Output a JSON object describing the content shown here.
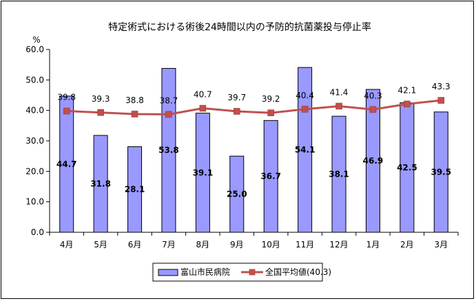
{
  "chart_data": {
    "type": "bar",
    "title": "特定術式における術後24時間以内の予防的抗菌薬投与停止率",
    "ylabel": "%",
    "ylim": [
      0,
      60
    ],
    "ytick_labels": [
      "0.0",
      "10.0",
      "20.0",
      "30.0",
      "40.0",
      "50.0",
      "60.0"
    ],
    "categories": [
      "4月",
      "5月",
      "6月",
      "7月",
      "8月",
      "9月",
      "10月",
      "11月",
      "12月",
      "1月",
      "2月",
      "3月"
    ],
    "series": [
      {
        "name": "富山市民病院",
        "kind": "bar",
        "color": "#9999ff",
        "values": [
          44.7,
          31.8,
          28.1,
          53.8,
          39.1,
          25.0,
          36.7,
          54.1,
          38.1,
          46.9,
          42.5,
          39.5
        ],
        "labels": [
          "44.7",
          "31.8",
          "28.1",
          "53.8",
          "39.1",
          "25.0",
          "36.7",
          "54.1",
          "38.1",
          "46.9",
          "42.5",
          "39.5"
        ]
      },
      {
        "name": "全国平均値(40.3)",
        "kind": "line",
        "color": "#c0504d",
        "values": [
          39.8,
          39.3,
          38.8,
          38.7,
          40.7,
          39.7,
          39.2,
          40.4,
          41.4,
          40.3,
          42.1,
          43.3
        ],
        "labels": [
          "39.8",
          "39.3",
          "38.8",
          "38.7",
          "40.7",
          "39.7",
          "39.2",
          "40.4",
          "41.4",
          "40.3",
          "42.1",
          "43.3"
        ]
      }
    ],
    "grid": false,
    "legend": "bottom"
  }
}
